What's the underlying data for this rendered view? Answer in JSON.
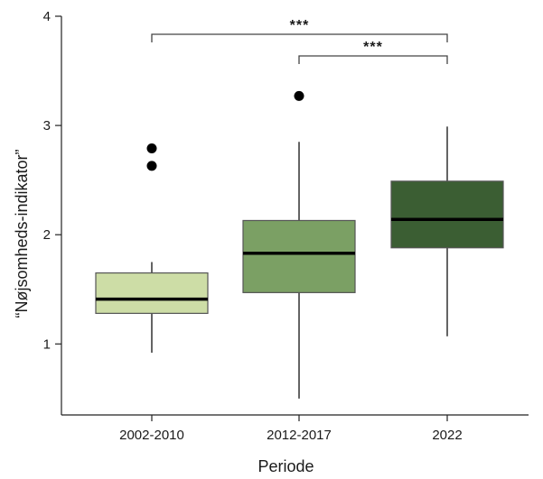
{
  "chart_data": {
    "type": "boxplot",
    "title": "",
    "xlabel": "Periode",
    "ylabel": "“Nøjsomheds-indikator”",
    "ylim": [
      0.35,
      4.0
    ],
    "yticks": [
      1,
      2,
      3,
      4
    ],
    "grid": false,
    "categories": [
      "2002-2010",
      "2012-2017",
      "2022"
    ],
    "colors": [
      "#cddda6",
      "#7ba064",
      "#3b5e33"
    ],
    "boxes": [
      {
        "category": "2002-2010",
        "whisker_low": 0.92,
        "q1": 1.28,
        "median": 1.41,
        "q3": 1.65,
        "whisker_high": 1.75,
        "outliers": [
          2.63,
          2.79
        ]
      },
      {
        "category": "2012-2017",
        "whisker_low": 0.5,
        "q1": 1.47,
        "median": 1.83,
        "q3": 2.13,
        "whisker_high": 2.85,
        "outliers": [
          3.27
        ]
      },
      {
        "category": "2022",
        "whisker_low": 1.07,
        "q1": 1.88,
        "median": 2.14,
        "q3": 2.49,
        "whisker_high": 2.99,
        "outliers": []
      }
    ],
    "significance": [
      {
        "from": "2002-2010",
        "to": "2022",
        "label": "***"
      },
      {
        "from": "2012-2017",
        "to": "2022",
        "label": "***"
      }
    ]
  }
}
